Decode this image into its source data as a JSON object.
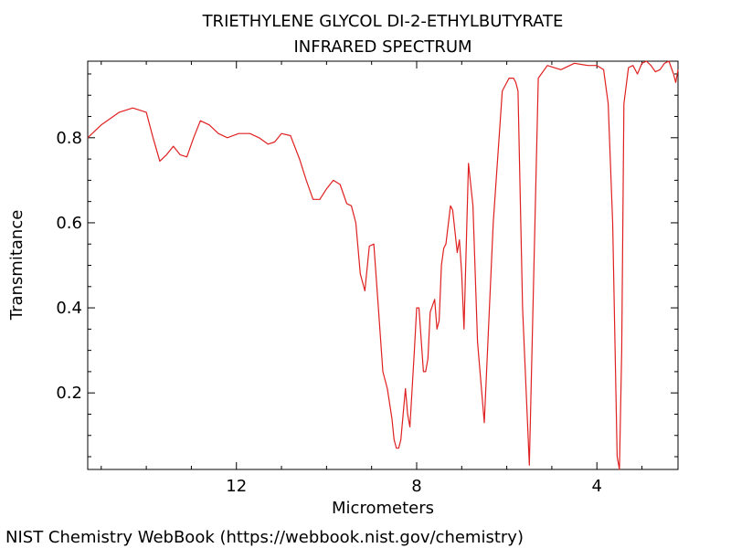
{
  "chart_data": {
    "type": "line",
    "title": "TRIETHYLENE GLYCOL DI-2-ETHYLBUTYRATE",
    "subtitle": "INFRARED SPECTRUM",
    "xlabel": "Micrometers",
    "ylabel": "Transmitance",
    "xlim": [
      15.3,
      2.2
    ],
    "ylim": [
      0.02,
      0.98
    ],
    "x_ticks": [
      12,
      8,
      4
    ],
    "x_tick_labels": [
      "12",
      "8",
      "4"
    ],
    "y_ticks": [
      0.2,
      0.4,
      0.6,
      0.8
    ],
    "y_tick_labels": [
      "0.2",
      "0.4",
      "0.6",
      "0.8"
    ],
    "grid": false,
    "line_color": "#e02020",
    "series": [
      {
        "x": [
          15.3,
          15.0,
          14.6,
          14.3,
          14.0,
          13.85,
          13.7,
          13.55,
          13.4,
          13.25,
          13.1,
          12.95,
          12.8,
          12.6,
          12.4,
          12.2,
          11.95,
          11.7,
          11.5,
          11.3,
          11.15,
          11.0,
          10.8,
          10.6,
          10.45,
          10.3,
          10.15,
          10.0,
          9.85,
          9.7,
          9.55,
          9.45,
          9.35,
          9.25,
          9.15,
          9.05,
          8.95,
          8.85,
          8.75,
          8.65,
          8.55,
          8.5,
          8.45,
          8.4,
          8.35,
          8.25,
          8.2,
          8.15,
          8.05,
          8.0,
          7.95,
          7.85,
          7.8,
          7.75,
          7.7,
          7.6,
          7.55,
          7.5,
          7.45,
          7.4,
          7.35,
          7.25,
          7.2,
          7.1,
          7.05,
          7.0,
          6.95,
          6.85,
          6.75,
          6.65,
          6.5,
          6.3,
          6.1,
          5.95,
          5.85,
          5.8,
          5.75,
          5.65,
          5.5,
          5.3,
          5.1,
          4.8,
          4.5,
          4.2,
          4.0,
          3.85,
          3.75,
          3.65,
          3.55,
          3.5,
          3.45,
          3.4,
          3.3,
          3.2,
          3.1,
          3.0,
          2.9,
          2.8,
          2.7,
          2.6,
          2.5,
          2.4,
          2.3,
          2.25,
          2.2
        ],
        "y": [
          0.8,
          0.83,
          0.86,
          0.87,
          0.86,
          0.8,
          0.745,
          0.76,
          0.78,
          0.76,
          0.755,
          0.8,
          0.84,
          0.83,
          0.81,
          0.8,
          0.81,
          0.81,
          0.8,
          0.785,
          0.79,
          0.81,
          0.805,
          0.75,
          0.7,
          0.655,
          0.655,
          0.68,
          0.7,
          0.69,
          0.645,
          0.64,
          0.6,
          0.48,
          0.44,
          0.545,
          0.55,
          0.4,
          0.25,
          0.21,
          0.14,
          0.09,
          0.07,
          0.07,
          0.09,
          0.21,
          0.15,
          0.12,
          0.3,
          0.4,
          0.4,
          0.25,
          0.25,
          0.28,
          0.39,
          0.42,
          0.35,
          0.37,
          0.5,
          0.54,
          0.55,
          0.64,
          0.63,
          0.53,
          0.56,
          0.48,
          0.35,
          0.74,
          0.64,
          0.32,
          0.13,
          0.6,
          0.91,
          0.94,
          0.94,
          0.93,
          0.91,
          0.4,
          0.03,
          0.94,
          0.97,
          0.96,
          0.975,
          0.97,
          0.97,
          0.96,
          0.88,
          0.6,
          0.05,
          0.02,
          0.3,
          0.88,
          0.965,
          0.97,
          0.95,
          0.975,
          0.98,
          0.97,
          0.955,
          0.96,
          0.975,
          0.98,
          0.95,
          0.93,
          0.96
        ]
      }
    ]
  },
  "footer": {
    "credit": "NIST Chemistry WebBook (https://webbook.nist.gov/chemistry)"
  }
}
